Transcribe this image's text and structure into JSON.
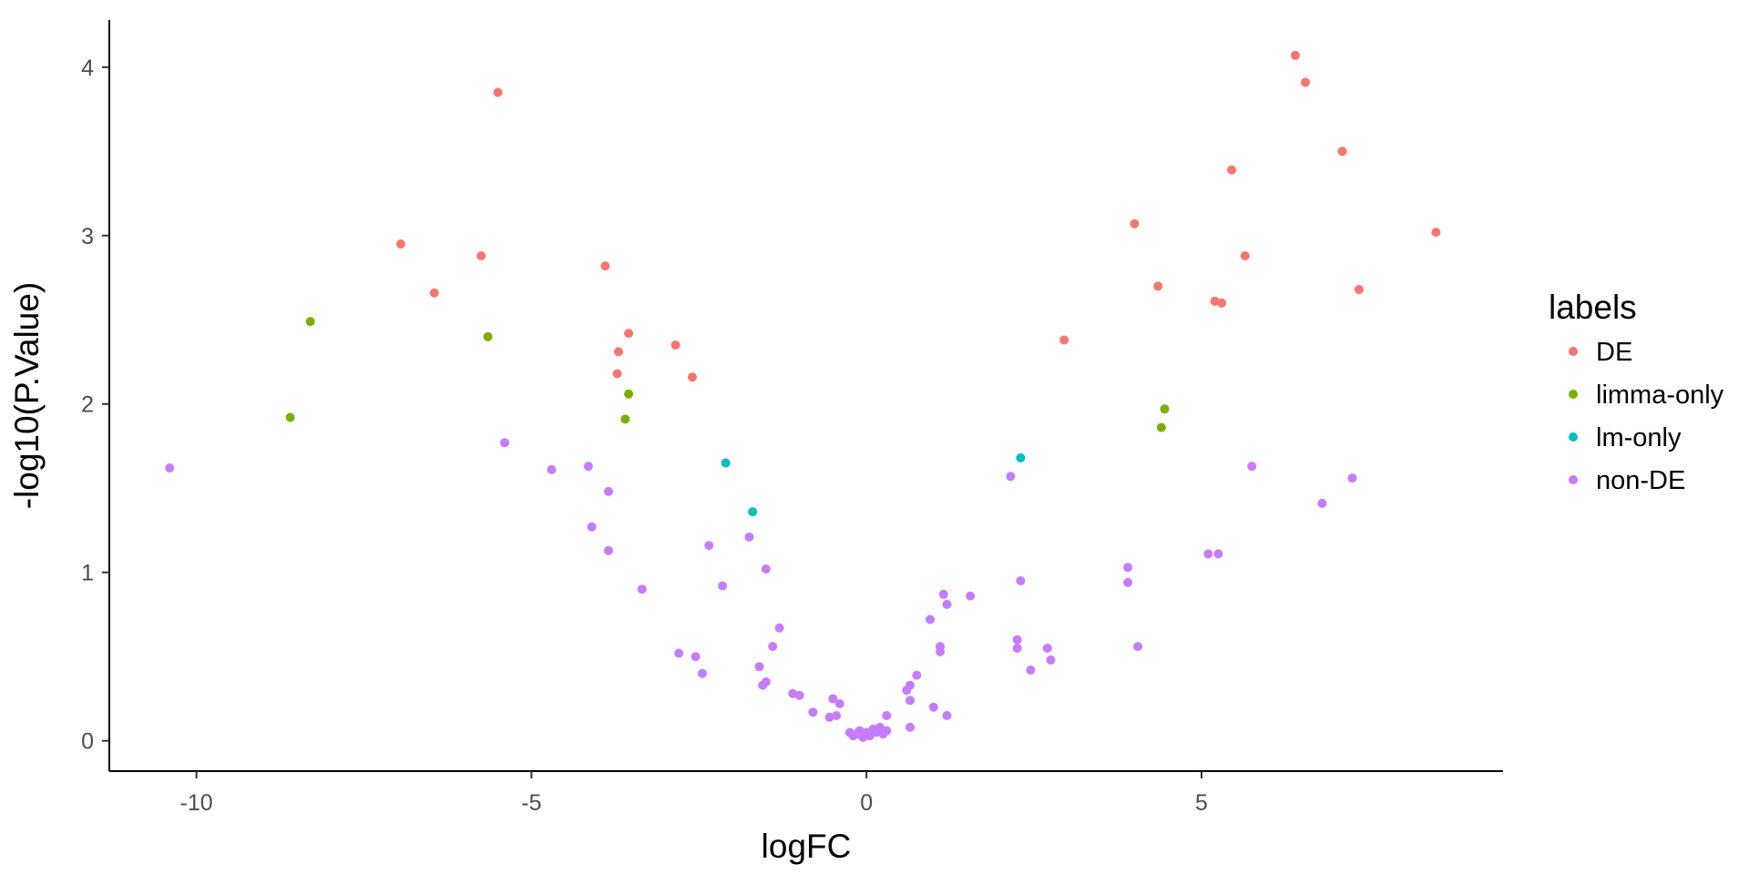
{
  "chart_data": {
    "type": "scatter",
    "xlabel": "logFC",
    "ylabel": "-log10(P.Value)",
    "xlim": [
      -11.3,
      9.5
    ],
    "ylim": [
      -0.18,
      4.28
    ],
    "x_ticks": [
      -10,
      -5,
      0,
      5
    ],
    "x_tick_labels": [
      "-10",
      "-5",
      "0",
      "5"
    ],
    "y_ticks": [
      0,
      1,
      2,
      3,
      4
    ],
    "y_tick_labels": [
      "0",
      "1",
      "2",
      "3",
      "4"
    ],
    "grid": false,
    "legend_title": "labels",
    "legend_position": "right",
    "series": [
      {
        "name": "DE",
        "color": "#F8766D",
        "points": [
          [
            6.4,
            4.07
          ],
          [
            6.55,
            3.91
          ],
          [
            -5.5,
            3.85
          ],
          [
            7.1,
            3.5
          ],
          [
            5.45,
            3.39
          ],
          [
            4.0,
            3.07
          ],
          [
            8.5,
            3.02
          ],
          [
            -6.95,
            2.95
          ],
          [
            -5.75,
            2.88
          ],
          [
            5.65,
            2.88
          ],
          [
            -3.9,
            2.82
          ],
          [
            4.35,
            2.7
          ],
          [
            7.35,
            2.68
          ],
          [
            -6.45,
            2.66
          ],
          [
            5.2,
            2.61
          ],
          [
            5.3,
            2.6
          ],
          [
            -3.55,
            2.42
          ],
          [
            2.95,
            2.38
          ],
          [
            -2.85,
            2.35
          ],
          [
            -3.7,
            2.31
          ],
          [
            -3.72,
            2.18
          ],
          [
            -2.6,
            2.16
          ]
        ]
      },
      {
        "name": "limma-only",
        "color": "#7CAE00",
        "points": [
          [
            -8.3,
            2.49
          ],
          [
            -5.65,
            2.4
          ],
          [
            -3.55,
            2.06
          ],
          [
            4.45,
            1.97
          ],
          [
            -8.6,
            1.92
          ],
          [
            -3.6,
            1.91
          ],
          [
            4.4,
            1.86
          ]
        ]
      },
      {
        "name": "lm-only",
        "color": "#00BFC4",
        "points": [
          [
            2.3,
            1.68
          ],
          [
            -2.1,
            1.65
          ],
          [
            -1.7,
            1.36
          ]
        ]
      },
      {
        "name": "non-DE",
        "color": "#C77CFF",
        "points": [
          [
            -10.4,
            1.62
          ],
          [
            -5.4,
            1.77
          ],
          [
            -4.7,
            1.61
          ],
          [
            -4.15,
            1.63
          ],
          [
            -3.85,
            1.48
          ],
          [
            -4.1,
            1.27
          ],
          [
            -3.85,
            1.13
          ],
          [
            -3.35,
            0.9
          ],
          [
            5.75,
            1.63
          ],
          [
            7.25,
            1.56
          ],
          [
            2.15,
            1.57
          ],
          [
            6.8,
            1.41
          ],
          [
            -1.75,
            1.21
          ],
          [
            -2.35,
            1.16
          ],
          [
            -1.5,
            1.02
          ],
          [
            -2.15,
            0.92
          ],
          [
            3.9,
            1.03
          ],
          [
            3.9,
            0.94
          ],
          [
            5.1,
            1.11
          ],
          [
            5.25,
            1.11
          ],
          [
            2.3,
            0.95
          ],
          [
            1.15,
            0.87
          ],
          [
            1.55,
            0.86
          ],
          [
            1.2,
            0.81
          ],
          [
            0.95,
            0.72
          ],
          [
            -1.3,
            0.67
          ],
          [
            -1.4,
            0.56
          ],
          [
            -2.8,
            0.52
          ],
          [
            -2.55,
            0.5
          ],
          [
            -2.45,
            0.4
          ],
          [
            -1.6,
            0.44
          ],
          [
            -1.55,
            0.33
          ],
          [
            -1.5,
            0.35
          ],
          [
            -1.1,
            0.28
          ],
          [
            -1.0,
            0.27
          ],
          [
            -0.8,
            0.17
          ],
          [
            -0.5,
            0.25
          ],
          [
            -0.4,
            0.22
          ],
          [
            -0.55,
            0.14
          ],
          [
            -0.45,
            0.15
          ],
          [
            0.6,
            0.3
          ],
          [
            0.65,
            0.33
          ],
          [
            0.75,
            0.39
          ],
          [
            0.65,
            0.24
          ],
          [
            1.1,
            0.56
          ],
          [
            1.1,
            0.53
          ],
          [
            1.0,
            0.2
          ],
          [
            1.2,
            0.15
          ],
          [
            2.25,
            0.6
          ],
          [
            2.25,
            0.55
          ],
          [
            2.7,
            0.55
          ],
          [
            2.75,
            0.48
          ],
          [
            2.45,
            0.42
          ],
          [
            4.05,
            0.56
          ],
          [
            0.3,
            0.15
          ],
          [
            0.65,
            0.08
          ],
          [
            -0.25,
            0.05
          ],
          [
            -0.2,
            0.03
          ],
          [
            -0.1,
            0.06
          ],
          [
            -0.05,
            0.02
          ],
          [
            0.05,
            0.03
          ],
          [
            0.1,
            0.07
          ],
          [
            0.15,
            0.05
          ],
          [
            0.2,
            0.08
          ],
          [
            0.25,
            0.04
          ],
          [
            0.3,
            0.06
          ],
          [
            -0.15,
            0.04
          ],
          [
            0.0,
            0.05
          ]
        ]
      }
    ]
  }
}
